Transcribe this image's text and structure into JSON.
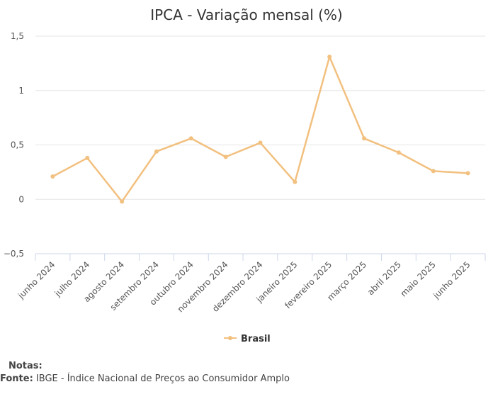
{
  "chart_data": {
    "type": "line",
    "title": "IPCA - Variação mensal (%)",
    "categories": [
      "junho 2024",
      "julho 2024",
      "agosto 2024",
      "setembro 2024",
      "outubro 2024",
      "novembro 2024",
      "dezembro 2024",
      "janeiro 2025",
      "fevereiro 2025",
      "março 2025",
      "abril 2025",
      "maio 2025",
      "junho 2025"
    ],
    "series": [
      {
        "name": "Brasil",
        "color": "#f2c07f",
        "values": [
          0.21,
          0.38,
          -0.02,
          0.44,
          0.56,
          0.39,
          0.52,
          0.16,
          1.31,
          0.56,
          0.43,
          0.26,
          0.24
        ]
      }
    ],
    "ylim": [
      -0.5,
      1.5
    ],
    "yticks": [
      1.5,
      1,
      0.5,
      0,
      -0.5
    ],
    "ytick_labels": [
      "1,5",
      "1",
      "0,5",
      "0",
      "−0,5"
    ],
    "grid": true,
    "legend": "bottom-center"
  },
  "footer": {
    "notes_label": "Notas:",
    "source_label": "Fonte:",
    "source_text": "IBGE - Índice Nacional de Preços ao Consumidor Amplo"
  }
}
